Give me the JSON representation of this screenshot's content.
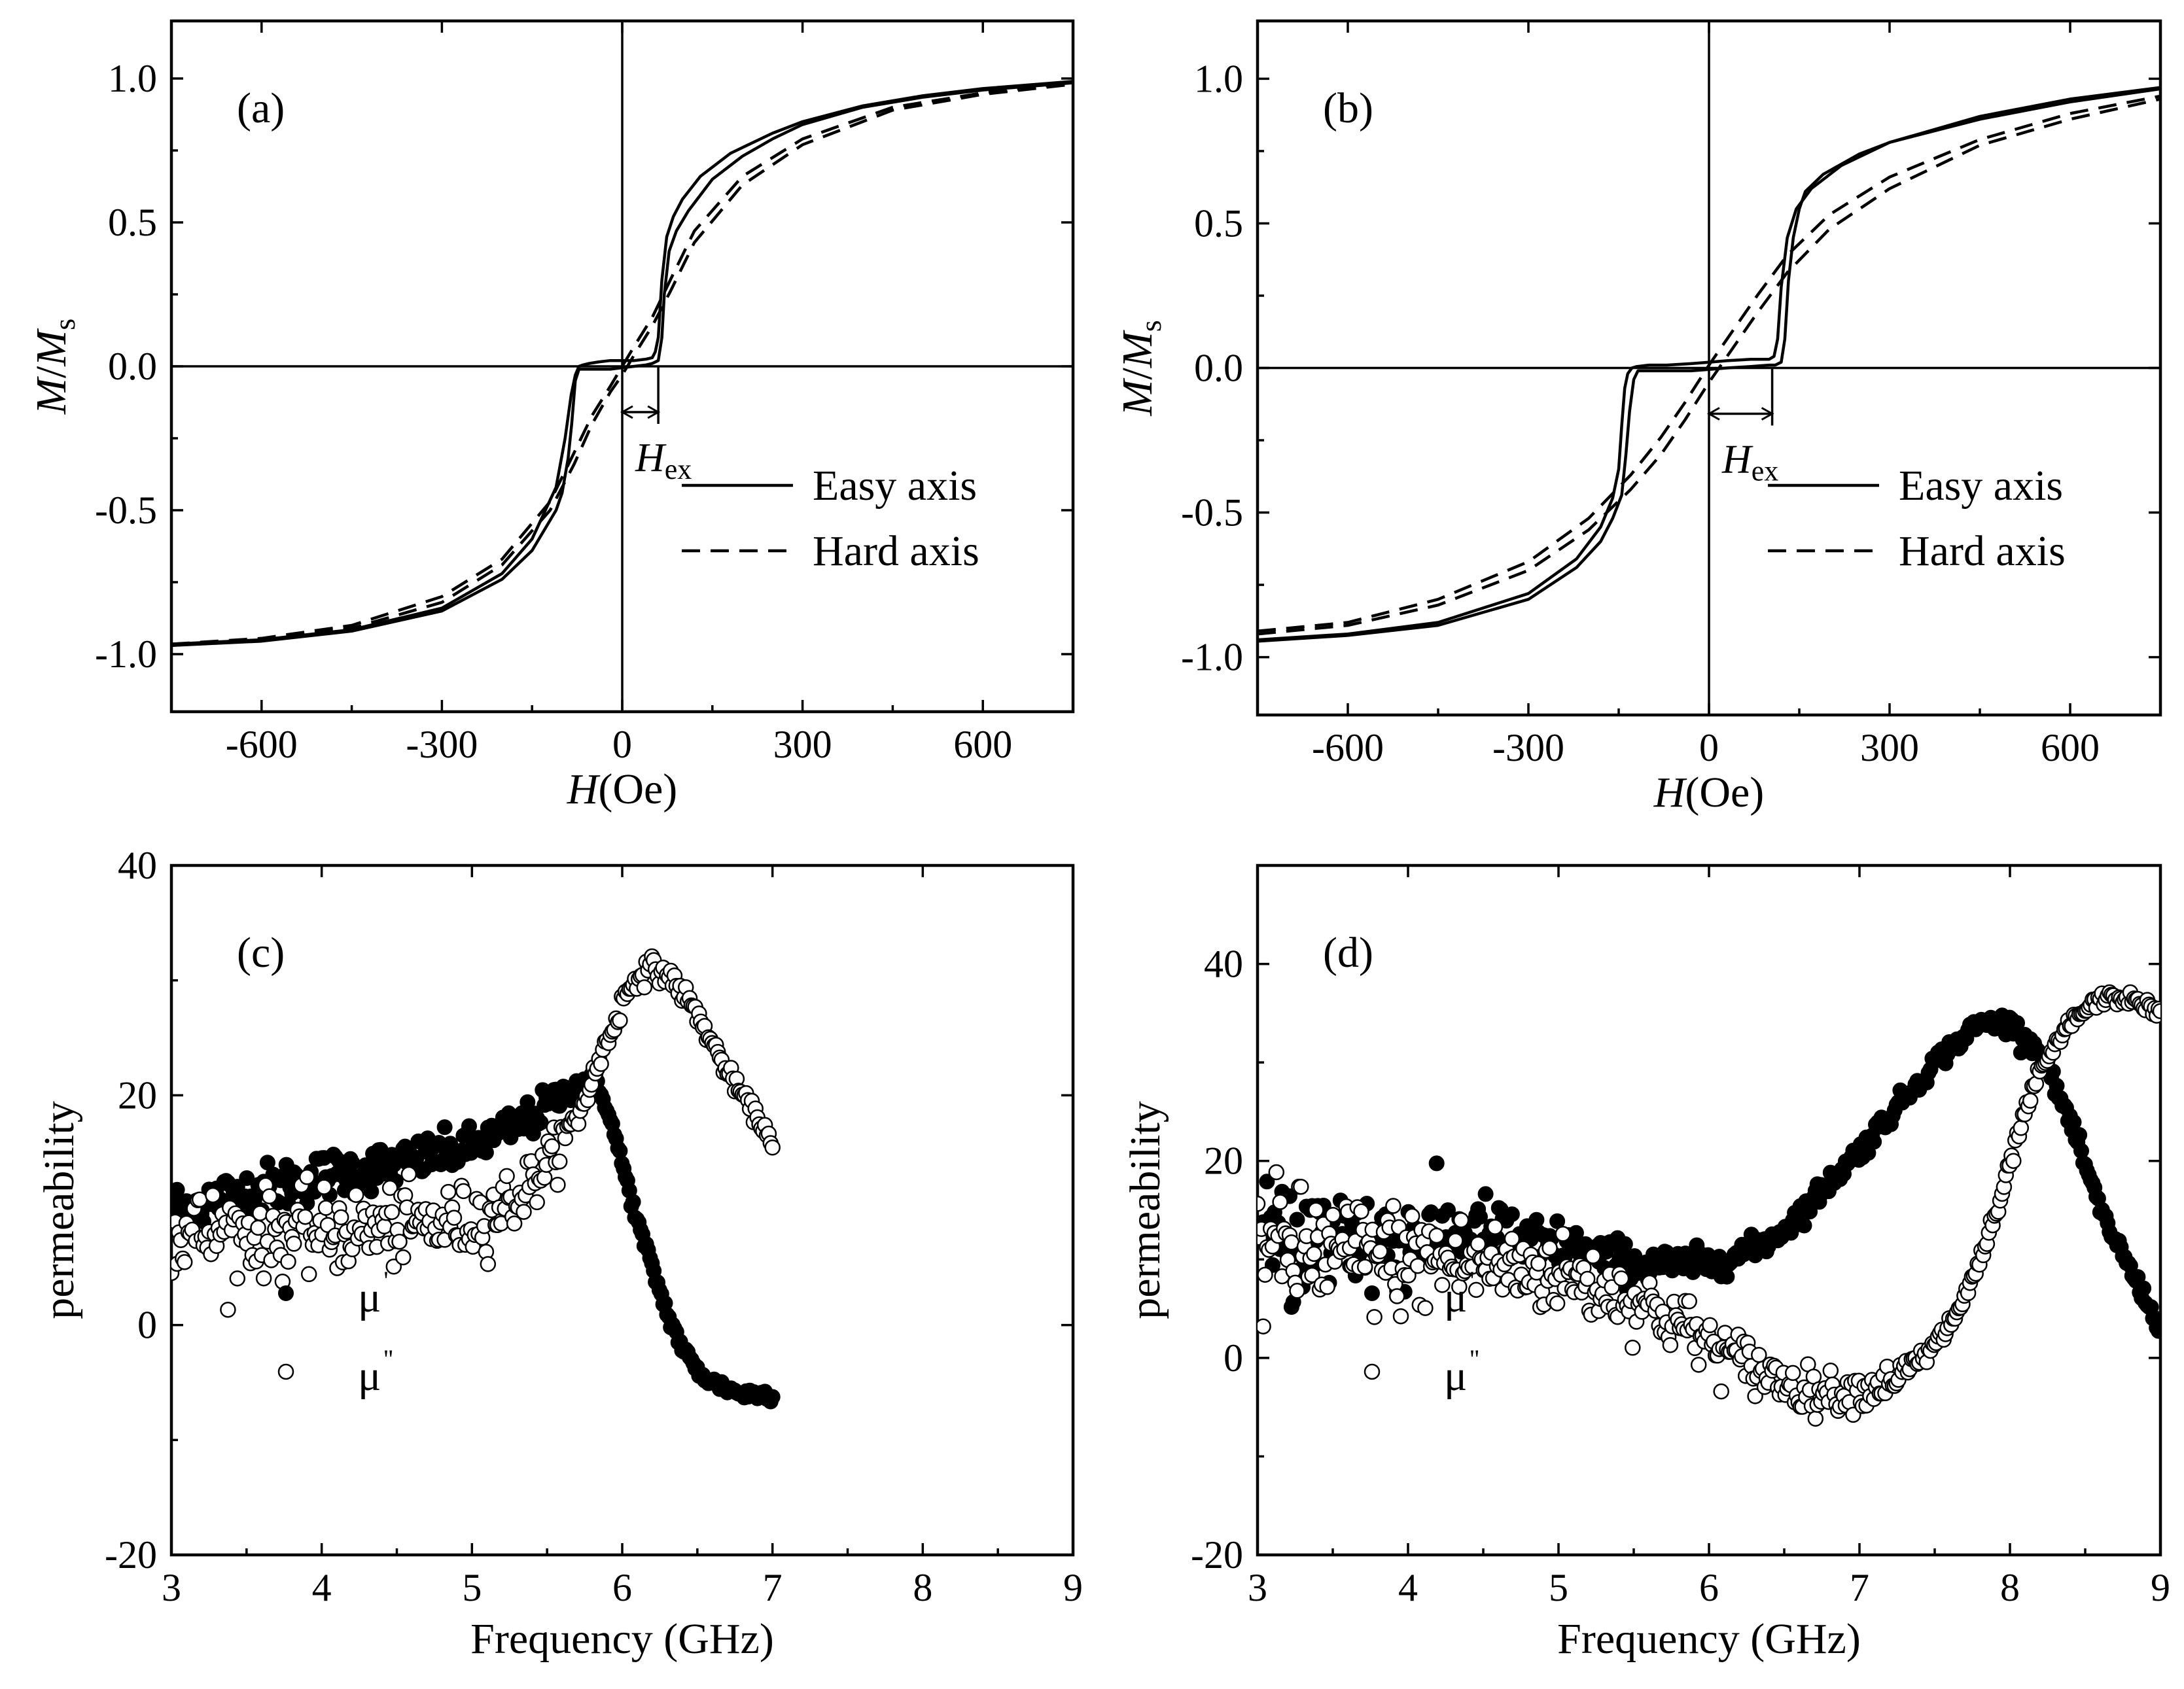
{
  "chart_data": [
    {
      "id": "a",
      "type": "line",
      "panel_label": "(a)",
      "xlabel_italic": "H",
      "xlabel_rest": "(Oe)",
      "ylabel_italic_1": "M",
      "ylabel_mid": "/",
      "ylabel_italic_2": "M",
      "ylabel_sub": "s",
      "xlim": [
        -750,
        750
      ],
      "ylim": [
        -1.2,
        1.2
      ],
      "xticks": [
        -600,
        -300,
        0,
        300,
        600
      ],
      "xtick_labels": [
        "-600",
        "-300",
        "0",
        "300",
        "600"
      ],
      "yticks": [
        -1.0,
        -0.5,
        0.0,
        0.5,
        1.0
      ],
      "ytick_labels": [
        "-1.0",
        "-0.5",
        "0.0",
        "0.5",
        "1.0"
      ],
      "annotation": {
        "text": "H",
        "sub": "ex",
        "from": 0,
        "to": 60
      },
      "legend": [
        {
          "label": "Easy axis",
          "style": "solid"
        },
        {
          "label": "Hard axis",
          "style": "dashed"
        }
      ],
      "series": [
        {
          "name": "Easy axis",
          "style": "solid",
          "branches": [
            {
              "x": [
                -750,
                -600,
                -450,
                -300,
                -200,
                -150,
                -110,
                -95,
                -85,
                -78,
                -72,
                -65,
                -55,
                -40,
                -20,
                0,
                20,
                40,
                50,
                55,
                60,
                66,
                74,
                85,
                100,
                130,
                180,
                250,
                300,
                400,
                500,
                600,
                750
              ],
              "y": [
                -0.965,
                -0.95,
                -0.915,
                -0.84,
                -0.72,
                -0.6,
                -0.42,
                -0.25,
                -0.1,
                -0.03,
                0,
                0.005,
                0.01,
                0.015,
                0.02,
                0.02,
                0.02,
                0.025,
                0.03,
                0.05,
                0.1,
                0.3,
                0.45,
                0.52,
                0.58,
                0.66,
                0.74,
                0.81,
                0.85,
                0.905,
                0.94,
                0.965,
                0.99
              ]
            },
            {
              "x": [
                -750,
                -600,
                -450,
                -300,
                -200,
                -150,
                -110,
                -100,
                -90,
                -84,
                -78,
                -72,
                -65,
                -55,
                -40,
                -20,
                0,
                20,
                40,
                50,
                60,
                66,
                70,
                78,
                90,
                110,
                150,
                200,
                250,
                300,
                400,
                500,
                600,
                750
              ],
              "y": [
                -0.97,
                -0.955,
                -0.92,
                -0.85,
                -0.74,
                -0.64,
                -0.5,
                -0.44,
                -0.32,
                -0.2,
                -0.05,
                -0.01,
                -0.01,
                -0.01,
                -0.01,
                -0.01,
                -0.005,
                0,
                0.005,
                0.01,
                0.02,
                0.1,
                0.25,
                0.4,
                0.47,
                0.54,
                0.65,
                0.73,
                0.79,
                0.84,
                0.9,
                0.935,
                0.96,
                0.985
              ]
            }
          ]
        },
        {
          "name": "Hard axis",
          "style": "dashed",
          "branches": [
            {
              "x": [
                -750,
                -600,
                -450,
                -300,
                -200,
                -120,
                -80,
                -50,
                -20,
                0,
                20,
                50,
                80,
                120,
                200,
                300,
                450,
                600,
                750
              ],
              "y": [
                -0.965,
                -0.945,
                -0.9,
                -0.8,
                -0.67,
                -0.47,
                -0.3,
                -0.17,
                -0.07,
                0,
                0.07,
                0.17,
                0.3,
                0.47,
                0.66,
                0.79,
                0.9,
                0.95,
                0.985
              ]
            },
            {
              "x": [
                -750,
                -600,
                -450,
                -300,
                -200,
                -120,
                -80,
                -50,
                -20,
                0,
                20,
                50,
                80,
                120,
                200,
                300,
                450,
                600,
                750
              ],
              "y": [
                -0.97,
                -0.95,
                -0.91,
                -0.82,
                -0.69,
                -0.5,
                -0.34,
                -0.2,
                -0.09,
                -0.03,
                0.04,
                0.14,
                0.26,
                0.43,
                0.63,
                0.77,
                0.89,
                0.945,
                0.98
              ]
            }
          ]
        }
      ]
    },
    {
      "id": "b",
      "type": "line",
      "panel_label": "(b)",
      "xlabel_italic": "H",
      "xlabel_rest": "(Oe)",
      "ylabel_italic_1": "M",
      "ylabel_mid": "/",
      "ylabel_italic_2": "M",
      "ylabel_sub": "s",
      "xlim": [
        -750,
        750
      ],
      "ylim": [
        -1.2,
        1.2
      ],
      "xticks": [
        -600,
        -300,
        0,
        300,
        600
      ],
      "xtick_labels": [
        "-600",
        "-300",
        "0",
        "300",
        "600"
      ],
      "yticks": [
        -1.0,
        -0.5,
        0.0,
        0.5,
        1.0
      ],
      "ytick_labels": [
        "-1.0",
        "-0.5",
        "0.0",
        "0.5",
        "1.0"
      ],
      "annotation": {
        "text": "H",
        "sub": "ex",
        "from": 0,
        "to": 105
      },
      "legend": [
        {
          "label": "Easy axis",
          "style": "solid"
        },
        {
          "label": "Hard axis",
          "style": "dashed"
        }
      ],
      "series": [
        {
          "name": "Easy axis",
          "style": "solid",
          "branches": [
            {
              "x": [
                -750,
                -600,
                -450,
                -300,
                -220,
                -180,
                -160,
                -150,
                -145,
                -140,
                -135,
                -128,
                -120,
                -100,
                -70,
                -30,
                0,
                30,
                70,
                100,
                108,
                114,
                120,
                130,
                145,
                170,
                220,
                300,
                450,
                600,
                750
              ],
              "y": [
                -0.94,
                -0.92,
                -0.88,
                -0.78,
                -0.66,
                -0.55,
                -0.45,
                -0.35,
                -0.2,
                -0.07,
                -0.02,
                0,
                0.005,
                0.01,
                0.01,
                0.015,
                0.02,
                0.025,
                0.03,
                0.03,
                0.04,
                0.1,
                0.28,
                0.45,
                0.55,
                0.62,
                0.7,
                0.78,
                0.87,
                0.93,
                0.97
              ]
            },
            {
              "x": [
                -750,
                -600,
                -450,
                -300,
                -220,
                -180,
                -160,
                -145,
                -138,
                -132,
                -125,
                -118,
                -110,
                -100,
                -70,
                -30,
                0,
                30,
                70,
                100,
                110,
                120,
                126,
                132,
                140,
                150,
                160,
                190,
                250,
                300,
                450,
                600,
                750
              ],
              "y": [
                -0.945,
                -0.925,
                -0.89,
                -0.8,
                -0.69,
                -0.6,
                -0.52,
                -0.44,
                -0.3,
                -0.15,
                -0.04,
                -0.01,
                -0.01,
                -0.01,
                -0.01,
                -0.01,
                -0.005,
                0,
                0.005,
                0.01,
                0.01,
                0.02,
                0.1,
                0.3,
                0.45,
                0.55,
                0.61,
                0.67,
                0.74,
                0.78,
                0.86,
                0.92,
                0.965
              ]
            }
          ]
        },
        {
          "name": "Hard axis",
          "style": "dashed",
          "branches": [
            {
              "x": [
                -750,
                -600,
                -450,
                -300,
                -200,
                -130,
                -80,
                -40,
                0,
                40,
                80,
                130,
                200,
                300,
                450,
                600,
                750
              ],
              "y": [
                -0.91,
                -0.88,
                -0.8,
                -0.67,
                -0.52,
                -0.37,
                -0.24,
                -0.12,
                0.01,
                0.13,
                0.25,
                0.39,
                0.53,
                0.66,
                0.79,
                0.88,
                0.94
              ]
            },
            {
              "x": [
                -750,
                -600,
                -450,
                -300,
                -200,
                -130,
                -80,
                -40,
                0,
                40,
                80,
                130,
                200,
                300,
                450,
                600,
                750
              ],
              "y": [
                -0.92,
                -0.89,
                -0.82,
                -0.7,
                -0.56,
                -0.42,
                -0.3,
                -0.18,
                -0.05,
                0.07,
                0.19,
                0.33,
                0.48,
                0.62,
                0.77,
                0.86,
                0.93
              ]
            }
          ]
        }
      ]
    },
    {
      "id": "c",
      "type": "scatter",
      "panel_label": "(c)",
      "xlabel": "Frequency (GHz)",
      "ylabel": "permeability",
      "xlim": [
        3,
        9
      ],
      "ylim": [
        -20,
        40
      ],
      "xticks": [
        3,
        4,
        5,
        6,
        7,
        8,
        9
      ],
      "xtick_labels": [
        "3",
        "4",
        "5",
        "6",
        "7",
        "8",
        "9"
      ],
      "yticks": [
        -20,
        0,
        20,
        40
      ],
      "ytick_labels": [
        "-20",
        "0",
        "20",
        "40"
      ],
      "legend": [
        {
          "label": "μ",
          "mark": "'",
          "marker": "filled-circle"
        },
        {
          "label": "μ",
          "mark": "''",
          "marker": "open-circle"
        }
      ],
      "series": [
        {
          "name": "μ'",
          "marker": "filled-circle",
          "x_range": [
            3.0,
            7.0
          ],
          "n_points": 320,
          "trend_x": [
            3.0,
            3.5,
            4.0,
            4.5,
            5.0,
            5.4,
            5.7,
            5.8,
            5.9,
            6.0,
            6.1,
            6.2,
            6.3,
            6.4,
            6.5,
            6.6,
            6.7,
            6.8,
            7.0
          ],
          "trend_y": [
            10,
            11.5,
            13,
            14,
            15.5,
            18,
            21,
            21.5,
            19,
            14,
            9,
            5,
            1,
            -2,
            -4,
            -5,
            -5.5,
            -6,
            -6
          ],
          "noise": [
            [
              3.0,
              1.2
            ],
            [
              5.5,
              0.8
            ],
            [
              5.8,
              0.3
            ],
            [
              7.0,
              0.3
            ]
          ]
        },
        {
          "name": "μ''",
          "marker": "open-circle",
          "x_range": [
            3.0,
            7.0
          ],
          "n_points": 320,
          "trend_x": [
            3.0,
            3.5,
            4.0,
            4.5,
            5.0,
            5.3,
            5.5,
            5.7,
            5.85,
            6.0,
            6.1,
            6.2,
            6.3,
            6.4,
            6.5,
            6.6,
            6.7,
            6.8,
            6.9,
            7.0
          ],
          "trend_y": [
            8,
            8,
            8,
            8.5,
            9,
            11,
            14,
            18,
            23,
            28,
            30.5,
            31,
            30.5,
            29,
            27,
            24.5,
            22,
            20,
            18,
            16
          ],
          "noise": [
            [
              3.0,
              2.0
            ],
            [
              5.2,
              1.5
            ],
            [
              5.8,
              0.6
            ],
            [
              7.0,
              0.3
            ]
          ]
        }
      ]
    },
    {
      "id": "d",
      "type": "scatter",
      "panel_label": "(d)",
      "xlabel": "Frequency (GHz)",
      "ylabel": "permeability",
      "xlim": [
        3,
        9
      ],
      "ylim": [
        -20,
        50
      ],
      "xticks": [
        3,
        4,
        5,
        6,
        7,
        8,
        9
      ],
      "xtick_labels": [
        "3",
        "4",
        "5",
        "6",
        "7",
        "8",
        "9"
      ],
      "yticks": [
        -20,
        0,
        20,
        40
      ],
      "ytick_labels": [
        "-20",
        "0",
        "20",
        "40"
      ],
      "legend": [
        {
          "label": "μ",
          "mark": "'",
          "marker": "filled-circle"
        },
        {
          "label": "μ",
          "mark": "''",
          "marker": "open-circle"
        }
      ],
      "series": [
        {
          "name": "μ'",
          "marker": "filled-circle",
          "x_range": [
            3.0,
            9.0
          ],
          "n_points": 480,
          "trend_x": [
            3.0,
            3.5,
            4.0,
            4.5,
            5.0,
            5.5,
            6.0,
            6.3,
            6.5,
            7.0,
            7.5,
            7.8,
            8.0,
            8.2,
            8.4,
            8.6,
            8.8,
            9.0
          ],
          "trend_y": [
            11,
            12.5,
            12,
            12.5,
            11,
            9.5,
            9.5,
            11,
            13,
            21,
            30,
            34,
            34,
            31,
            24,
            15,
            9,
            3
          ],
          "noise": [
            [
              3.0,
              3.5
            ],
            [
              4.5,
              2.0
            ],
            [
              5.6,
              0.9
            ],
            [
              6.5,
              0.6
            ],
            [
              9.0,
              0.4
            ]
          ]
        },
        {
          "name": "μ''",
          "marker": "open-circle",
          "x_range": [
            3.0,
            9.0
          ],
          "n_points": 480,
          "trend_x": [
            3.0,
            3.5,
            4.0,
            4.5,
            5.0,
            5.5,
            5.8,
            6.0,
            6.3,
            6.5,
            6.7,
            6.9,
            7.1,
            7.3,
            7.5,
            7.7,
            7.9,
            8.1,
            8.2,
            8.4,
            8.6,
            8.8,
            9.0
          ],
          "trend_y": [
            11,
            10.5,
            10,
            9.5,
            8.5,
            6,
            3.5,
            1.5,
            -1,
            -2.5,
            -3.5,
            -3.5,
            -3,
            -1.5,
            1,
            6,
            14,
            25,
            29,
            34,
            36.5,
            36.5,
            35
          ],
          "noise": [
            [
              3.0,
              3.5
            ],
            [
              5.0,
              2.0
            ],
            [
              6.0,
              1.5
            ],
            [
              7.0,
              0.9
            ],
            [
              8.0,
              0.4
            ],
            [
              9.0,
              0.3
            ]
          ]
        }
      ]
    }
  ]
}
